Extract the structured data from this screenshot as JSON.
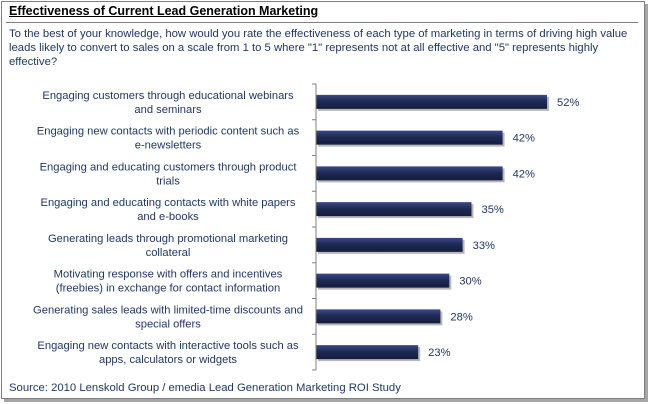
{
  "title": "Effectiveness of Current Lead Generation Marketing",
  "question": "To the best of your knowledge, how would you rate the effectiveness of each type of marketing in terms of driving high value leads likely to convert to  sales on a scale from 1 to  5 where \"1\" represents not at all effective and \"5\" represents highly effective?",
  "source": "Source: 2010 Lenskold Group / emedia Lead Generation Marketing ROI Study",
  "colors": {
    "bar": "#1f2a55",
    "bar_light": "#3b4a86",
    "axis": "#7f7f7f",
    "label_text": "#1f3864"
  },
  "chart_data": {
    "type": "bar",
    "orientation": "horizontal",
    "title": "Effectiveness of Current Lead Generation Marketing",
    "categories": [
      [
        "Engaging customers through educational webinars",
        "and seminars"
      ],
      [
        "Engaging new contacts with periodic content such as",
        "e-newsletters"
      ],
      [
        "Engaging and educating customers through product",
        "trials"
      ],
      [
        "Engaging and educating contacts with white papers",
        "and e-books"
      ],
      [
        "Generating leads through promotional marketing",
        "collateral"
      ],
      [
        "Motivating response with offers and incentives",
        "(freebies) in exchange for contact information"
      ],
      [
        "Generating sales leads with limited-time discounts and",
        "special offers"
      ],
      [
        "Engaging new contacts with interactive tools such as",
        "apps, calculators or widgets"
      ]
    ],
    "values": [
      52,
      42,
      42,
      35,
      33,
      30,
      28,
      23
    ],
    "value_labels": [
      "52%",
      "42%",
      "42%",
      "35%",
      "33%",
      "30%",
      "28%",
      "23%"
    ],
    "unit": "%",
    "xlim": [
      0,
      60
    ],
    "grid": false,
    "legend": "none"
  }
}
